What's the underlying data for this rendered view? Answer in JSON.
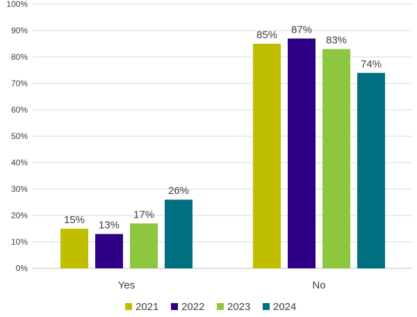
{
  "chart_data": {
    "type": "bar",
    "categories": [
      "Yes",
      "No"
    ],
    "series": [
      {
        "name": "2021",
        "values": [
          15,
          85
        ],
        "color": "#bfbf00"
      },
      {
        "name": "2022",
        "values": [
          13,
          87
        ],
        "color": "#2e0085"
      },
      {
        "name": "2023",
        "values": [
          17,
          83
        ],
        "color": "#8dc63f"
      },
      {
        "name": "2024",
        "values": [
          26,
          74
        ],
        "color": "#007080"
      }
    ],
    "data_labels": [
      [
        "15%",
        "85%"
      ],
      [
        "13%",
        "87%"
      ],
      [
        "17%",
        "83%"
      ],
      [
        "26%",
        "74%"
      ]
    ],
    "ylim": [
      0,
      100
    ],
    "y_ticks": [
      0,
      10,
      20,
      30,
      40,
      50,
      60,
      70,
      80,
      90,
      100
    ],
    "y_tick_labels": [
      "0%",
      "10%",
      "20%",
      "30%",
      "40%",
      "50%",
      "60%",
      "70%",
      "80%",
      "90%",
      "100%"
    ],
    "grid": true,
    "legend_position": "bottom"
  }
}
